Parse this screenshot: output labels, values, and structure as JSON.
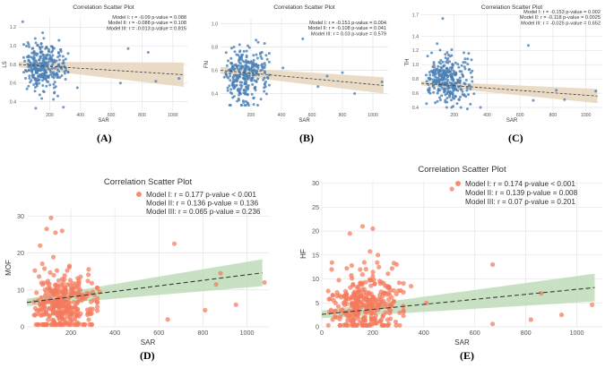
{
  "figure": {
    "panel_labels": [
      "(A)",
      "(B)",
      "(C)",
      "(D)",
      "(E)"
    ]
  },
  "colors": {
    "blue_point": "#4a7fb5",
    "red_point": "#f47a5c",
    "beige_band": "#e6d5bd",
    "green_band": "#bfdcb8",
    "line": "#3b3b3b",
    "grid": "#e5e5e5"
  },
  "chart_data": [
    {
      "id": "A",
      "type": "scatter",
      "title": "Correlation Scatter Plot",
      "xlabel": "SAR",
      "ylabel": "LS",
      "xlim": [
        0,
        1100
      ],
      "ylim": [
        0.3,
        1.3
      ],
      "xticks": [
        200,
        400,
        600,
        800,
        1000
      ],
      "yticks": [
        0.4,
        0.6,
        0.8,
        1.0,
        1.2
      ],
      "ytick_labels": [
        "0.4",
        "0.6",
        "0.8",
        "1.0",
        "1.2"
      ],
      "legend": [
        "Model I: r = -0.09  p-value = 0.088",
        "Model II: r = -0.088 p-value = 0.108",
        "Model III: r = -0.013 p-value = 0.815"
      ],
      "fit": {
        "x0": 0,
        "y0": 0.8,
        "x1": 1070,
        "y1": 0.69
      },
      "band": {
        "lo0": 0.77,
        "hi0": 0.83,
        "lo1": 0.56,
        "hi1": 0.82
      },
      "point_color": "blue",
      "band_color": "beige",
      "cluster": {
        "mean": 0.78,
        "sd": 0.14,
        "n": 300,
        "seed": 11,
        "ymin": 0.38,
        "ymax": 1.22
      },
      "outliers": [
        [
          25,
          1.26
        ],
        [
          110,
          0.33
        ],
        [
          290,
          0.34
        ],
        [
          380,
          0.55
        ],
        [
          660,
          0.6
        ],
        [
          710,
          0.97
        ],
        [
          840,
          0.93
        ],
        [
          890,
          0.62
        ],
        [
          1040,
          0.65
        ]
      ]
    },
    {
      "id": "B",
      "type": "scatter",
      "title": "Correlation Scatter Plot",
      "xlabel": "SAR",
      "ylabel": "FN",
      "xlim": [
        0,
        1100
      ],
      "ylim": [
        0.25,
        1.05
      ],
      "xticks": [
        200,
        400,
        600,
        800,
        1000
      ],
      "yticks": [
        0.4,
        0.6,
        0.8,
        1.0
      ],
      "ytick_labels": [
        "0.4",
        "0.6",
        "0.8",
        "1.0"
      ],
      "legend": [
        "Model I: r = -0.151 p-value = 0.004",
        "Model II: r = -0.108 p-value = 0.041",
        "Model III: r = 0.03 p-value = 0.579"
      ],
      "fit": {
        "x0": 0,
        "y0": 0.6,
        "x1": 1070,
        "y1": 0.47
      },
      "band": {
        "lo0": 0.57,
        "hi0": 0.63,
        "lo1": 0.4,
        "hi1": 0.54
      },
      "point_color": "blue",
      "band_color": "beige",
      "cluster": {
        "mean": 0.57,
        "sd": 0.12,
        "n": 300,
        "seed": 23,
        "ymin": 0.3,
        "ymax": 0.98
      },
      "outliers": [
        [
          540,
          0.87
        ],
        [
          410,
          0.62
        ],
        [
          640,
          0.46
        ],
        [
          700,
          0.55
        ],
        [
          800,
          0.58
        ],
        [
          880,
          0.4
        ],
        [
          1060,
          0.5
        ]
      ]
    },
    {
      "id": "C",
      "type": "scatter",
      "title": "Correlation Scatter Plot",
      "xlabel": "SAR",
      "ylabel": "TH",
      "xlim": [
        0,
        1100
      ],
      "ylim": [
        0.35,
        1.72
      ],
      "xticks": [
        200,
        400,
        600,
        800,
        1000
      ],
      "yticks": [
        0.4,
        0.6,
        0.8,
        1.0,
        1.2,
        1.4,
        1.7
      ],
      "ytick_labels": [
        "0.4",
        "0.6",
        "0.8",
        "1.0",
        "1.2",
        "1.4",
        "1.7"
      ],
      "legend": [
        "Model I: r = -0.153 p-value = 0.002",
        "Model II: r = -0.118 p-value = 0.0025",
        "Model III: r = -0.025 p-value = 0.652"
      ],
      "fit": {
        "x0": 0,
        "y0": 0.74,
        "x1": 1070,
        "y1": 0.56
      },
      "band": {
        "lo0": 0.71,
        "hi0": 0.77,
        "lo1": 0.46,
        "hi1": 0.66
      },
      "point_color": "blue",
      "band_color": "beige",
      "cluster": {
        "mean": 0.78,
        "sd": 0.17,
        "n": 320,
        "seed": 37,
        "ymin": 0.4,
        "ymax": 1.33
      },
      "outliers": [
        [
          130,
          1.65
        ],
        [
          280,
          0.38
        ],
        [
          360,
          0.4
        ],
        [
          650,
          1.27
        ],
        [
          680,
          0.5
        ],
        [
          820,
          0.64
        ],
        [
          870,
          0.51
        ],
        [
          1060,
          0.63
        ]
      ]
    },
    {
      "id": "D",
      "type": "scatter",
      "title": "Correlation Scatter Plot",
      "xlabel": "SAR",
      "ylabel": "MOF",
      "xlim": [
        0,
        1100
      ],
      "ylim": [
        0,
        32
      ],
      "xticks": [
        200,
        400,
        600,
        800,
        1000
      ],
      "yticks": [
        0,
        10,
        20,
        30
      ],
      "ytick_labels": [
        "0",
        "10",
        "20",
        "30"
      ],
      "legend": [
        "Model I: r = 0.177 p-value < 0.001",
        "Model II: r = 0.136 p-value = 0.136",
        "Model III: r = 0.065 p-value = 0.236"
      ],
      "fit": {
        "x0": 0,
        "y0": 6.6,
        "x1": 1070,
        "y1": 14.6
      },
      "band": {
        "lo0": 5.6,
        "hi0": 7.6,
        "lo1": 11.0,
        "hi1": 18.3
      },
      "point_color": "red",
      "band_color": "green",
      "cluster": {
        "mean": 6.5,
        "sd": 4.2,
        "n": 320,
        "seed": 51,
        "ymin": 0.6,
        "ymax": 20
      },
      "outliers": [
        [
          110,
          29.5
        ],
        [
          90,
          26.5
        ],
        [
          130,
          25.5
        ],
        [
          160,
          26.0
        ],
        [
          60,
          22.0
        ],
        [
          670,
          22.5
        ],
        [
          640,
          2.0
        ],
        [
          810,
          4.5
        ],
        [
          860,
          11.5
        ],
        [
          880,
          14.5
        ],
        [
          950,
          6.0
        ],
        [
          1080,
          12.0
        ],
        [
          330,
          9.5
        ]
      ]
    },
    {
      "id": "E",
      "type": "scatter",
      "title": "Correlation Scatter Plot",
      "xlabel": "SAR",
      "ylabel": "HF",
      "xlim": [
        0,
        1100
      ],
      "ylim": [
        0,
        30.5
      ],
      "xticks": [
        0,
        200,
        400,
        600,
        800,
        1000
      ],
      "yticks": [
        0,
        5,
        10,
        15,
        20,
        25,
        30
      ],
      "ytick_labels": [
        "0",
        "5",
        "10",
        "15",
        "20",
        "25",
        "30"
      ],
      "legend": [
        "Model I: r = 0.174 p-value < 0.001",
        "Model II: r = 0.139 p-value = 0.008",
        "Model III: r = 0.07 p-value = 0.201"
      ],
      "fit": {
        "x0": 0,
        "y0": 2.6,
        "x1": 1070,
        "y1": 8.2
      },
      "band": {
        "lo0": 1.8,
        "hi0": 3.4,
        "lo1": 5.3,
        "hi1": 11.1
      },
      "point_color": "red",
      "band_color": "green",
      "cluster": {
        "mean": 4.5,
        "sd": 3.3,
        "n": 320,
        "seed": 67,
        "ymin": 0.3,
        "ymax": 16
      },
      "outliers": [
        [
          510,
          28.8
        ],
        [
          200,
          20.5
        ],
        [
          160,
          21.0
        ],
        [
          110,
          19.5
        ],
        [
          220,
          15.0
        ],
        [
          670,
          13.0
        ],
        [
          670,
          0.6
        ],
        [
          820,
          1.5
        ],
        [
          860,
          7.0
        ],
        [
          940,
          2.5
        ],
        [
          1060,
          4.6
        ],
        [
          410,
          5.0
        ],
        [
          350,
          8.5
        ]
      ]
    }
  ]
}
